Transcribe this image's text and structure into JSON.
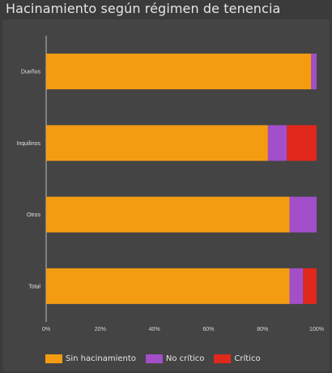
{
  "widget": {
    "title": "Hacinamiento según régimen de tenencia"
  },
  "chart_data": {
    "type": "bar",
    "orientation": "horizontal",
    "stacked": true,
    "categories": [
      "Dueños",
      "Inquilinos",
      "Otros",
      "Total"
    ],
    "series": [
      {
        "name": "Sin hacinamiento",
        "color": "#f39c12",
        "values": [
          98,
          82,
          90,
          90
        ]
      },
      {
        "name": "No crítico",
        "color": "#a34fc9",
        "values": [
          2,
          7,
          10,
          5
        ]
      },
      {
        "name": "Crítico",
        "color": "#e0281c",
        "values": [
          0,
          11,
          0,
          5
        ]
      }
    ],
    "xlim": [
      0,
      100
    ],
    "x_ticks": [
      "0%",
      "20%",
      "40%",
      "60%",
      "80%",
      "100%"
    ],
    "grid": false,
    "legend_position": "bottom-left"
  }
}
